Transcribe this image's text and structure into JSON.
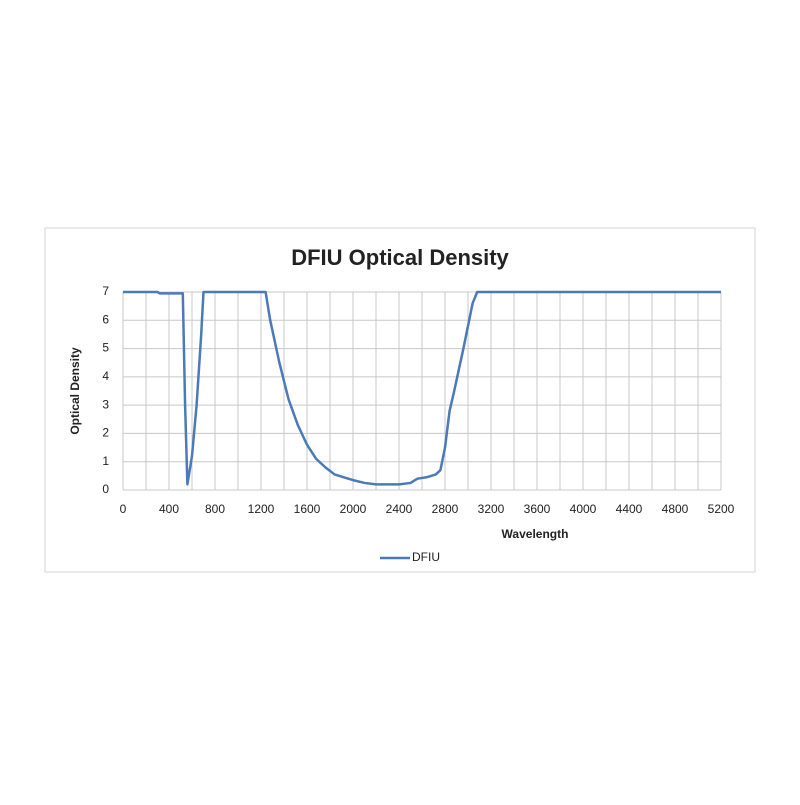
{
  "chart_data": {
    "type": "line",
    "title": "DFIU Optical Density",
    "x_label": "Wavelength",
    "y_label": "Optical Density",
    "x": [
      0,
      300,
      320,
      520,
      540,
      560,
      600,
      640,
      680,
      700,
      1240,
      1280,
      1360,
      1440,
      1520,
      1600,
      1680,
      1760,
      1840,
      1920,
      2000,
      2100,
      2200,
      2400,
      2500,
      2560,
      2640,
      2720,
      2760,
      2800,
      2840,
      2880,
      2960,
      3040,
      3080,
      5200
    ],
    "series": [
      {
        "name": "DFIU",
        "color": "#4a7ab8",
        "values": [
          7,
          7,
          6.95,
          6.95,
          3,
          0.2,
          1.2,
          3,
          5.5,
          7,
          7,
          6,
          4.5,
          3.2,
          2.3,
          1.6,
          1.1,
          0.8,
          0.55,
          0.45,
          0.35,
          0.25,
          0.2,
          0.2,
          0.25,
          0.4,
          0.45,
          0.55,
          0.7,
          1.5,
          2.8,
          3.5,
          5,
          6.6,
          7,
          7
        ]
      }
    ],
    "xlim": [
      0,
      5200
    ],
    "ylim": [
      0,
      7
    ],
    "xticks": [
      0,
      400,
      800,
      1200,
      1600,
      2000,
      2400,
      2800,
      3200,
      3600,
      4000,
      4400,
      4800,
      5200
    ],
    "xminorticks": [
      200,
      600,
      1000,
      1400,
      1800,
      2200,
      2600,
      3000,
      3400,
      3800,
      4200,
      4600,
      5000
    ],
    "yticks": [
      0,
      1,
      2,
      3,
      4,
      5,
      6,
      7
    ],
    "grid": true,
    "legend": "bottom"
  }
}
